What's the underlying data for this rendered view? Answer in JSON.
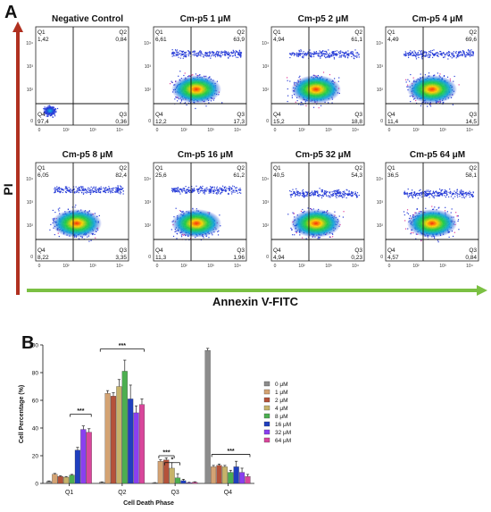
{
  "panel_a": {
    "label": "A",
    "y_axis_label": "PI",
    "x_axis_label": "Annexin V-FITC",
    "plots": [
      {
        "title": "Negative Control",
        "q1": "1,42",
        "q2": "0,84",
        "q3": "0,36",
        "q4": "97,4"
      },
      {
        "title": "Cm-p5 1 μM",
        "q1": "6,61",
        "q2": "63,9",
        "q3": "17,3",
        "q4": "12,2"
      },
      {
        "title": "Cm-p5 2 μM",
        "q1": "4,94",
        "q2": "61,1",
        "q3": "18,8",
        "q4": "15,2"
      },
      {
        "title": "Cm-p5 4 μM",
        "q1": "4,49",
        "q2": "69,6",
        "q3": "14,5",
        "q4": "11,4"
      },
      {
        "title": "Cm-p5 8 μM",
        "q1": "6,05",
        "q2": "82,4",
        "q3": "3,35",
        "q4": "8,22"
      },
      {
        "title": "Cm-p5 16 μM",
        "q1": "25,6",
        "q2": "61,2",
        "q3": "1,96",
        "q4": "11,3"
      },
      {
        "title": "Cm-p5 32 μM",
        "q1": "40,5",
        "q2": "54,3",
        "q3": "0,23",
        "q4": "4,94"
      },
      {
        "title": "Cm-p5 64 μM",
        "q1": "36,5",
        "q2": "58,1",
        "q3": "0,84",
        "q4": "4,57"
      }
    ],
    "quadrant_names": [
      "Q1",
      "Q2",
      "Q3",
      "Q4"
    ],
    "tick_labels": [
      "0",
      "10²",
      "10³",
      "10⁴"
    ]
  },
  "panel_b": {
    "label": "B",
    "chart_data": {
      "type": "bar",
      "xlabel": "Cell Death Phase",
      "ylabel": "Cell Percentage (%)",
      "ylim": [
        0,
        100
      ],
      "yticks": [
        0,
        20,
        40,
        60,
        80,
        100
      ],
      "categories": [
        "Q1",
        "Q2",
        "Q3",
        "Q4"
      ],
      "series": [
        {
          "name": "0 μM",
          "color": "#8c8c8c",
          "values": [
            1.4,
            0.8,
            0.4,
            96.0
          ],
          "errors": [
            0.4,
            0.3,
            0.2,
            1.5
          ]
        },
        {
          "name": "1 μM",
          "color": "#d4a373",
          "values": [
            6.6,
            65.0,
            16.0,
            12.0
          ],
          "errors": [
            0.6,
            2.0,
            1.0,
            1.0
          ]
        },
        {
          "name": "2 μM",
          "color": "#b5523a",
          "values": [
            5.0,
            63.0,
            17.0,
            13.0
          ],
          "errors": [
            0.5,
            2.5,
            1.5,
            1.0
          ]
        },
        {
          "name": "4 μM",
          "color": "#c7b36a",
          "values": [
            4.5,
            70.0,
            11.0,
            12.0
          ],
          "errors": [
            0.5,
            5.0,
            4.0,
            1.0
          ]
        },
        {
          "name": "8 μM",
          "color": "#4caf50",
          "values": [
            6.0,
            81.0,
            4.0,
            8.0
          ],
          "errors": [
            0.5,
            8.0,
            3.0,
            1.5
          ]
        },
        {
          "name": "16 μM",
          "color": "#1f3fbf",
          "values": [
            24.0,
            61.0,
            2.0,
            12.0
          ],
          "errors": [
            2.0,
            10.0,
            1.0,
            4.0
          ]
        },
        {
          "name": "32 μM",
          "color": "#8a3ff0",
          "values": [
            39.0,
            51.0,
            0.5,
            8.0
          ],
          "errors": [
            2.5,
            5.0,
            0.3,
            3.0
          ]
        },
        {
          "name": "64 μM",
          "color": "#d9469b",
          "values": [
            37.0,
            57.0,
            0.8,
            5.0
          ],
          "errors": [
            2.5,
            4.0,
            0.4,
            1.5
          ]
        }
      ],
      "significance": [
        "***",
        "***",
        "***",
        "*",
        "***"
      ]
    }
  }
}
